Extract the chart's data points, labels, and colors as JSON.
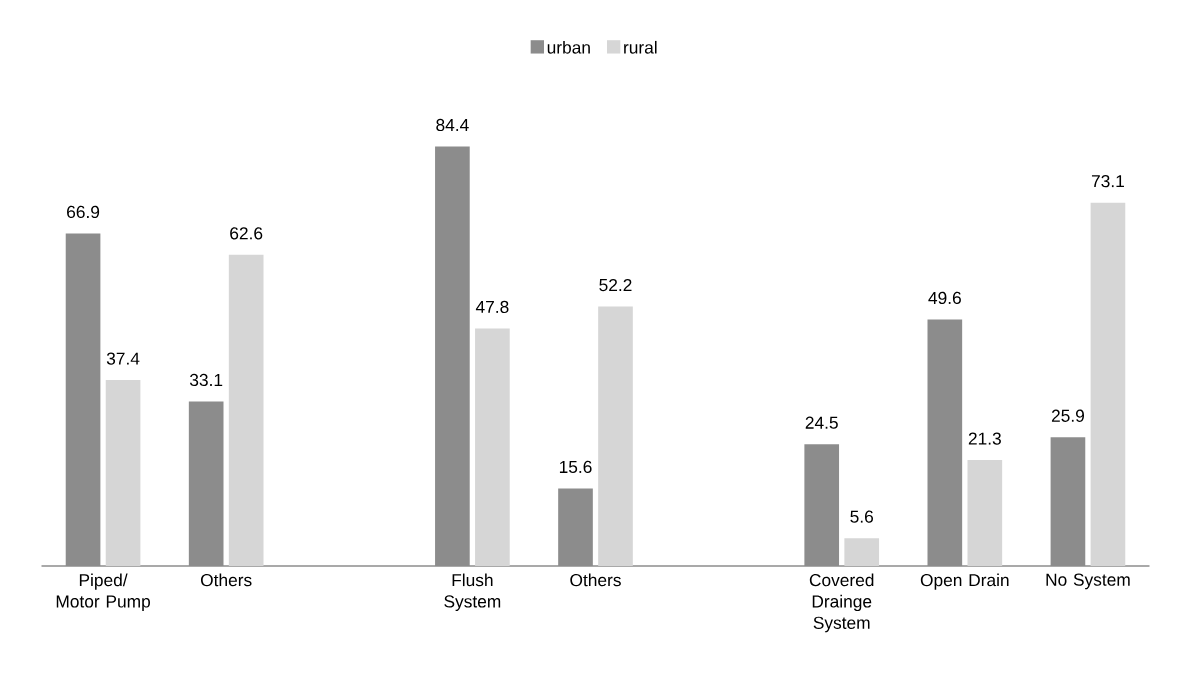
{
  "chart_data": {
    "type": "bar",
    "categories": [
      "Piped/ Motor Pump",
      "Others",
      null,
      "Flush System",
      "Others",
      null,
      "Covered Drainge System",
      "Open Drain",
      "No System"
    ],
    "series": [
      {
        "name": "urban",
        "color": "#8c8c8c",
        "values": [
          66.9,
          33.1,
          null,
          84.4,
          15.6,
          null,
          24.5,
          49.6,
          25.9
        ]
      },
      {
        "name": "rural",
        "color": "#d6d6d6",
        "values": [
          37.4,
          62.6,
          null,
          47.8,
          52.2,
          null,
          5.6,
          21.3,
          73.1
        ]
      }
    ],
    "tick_labels": "x",
    "data_labels": true,
    "legend": "top"
  }
}
